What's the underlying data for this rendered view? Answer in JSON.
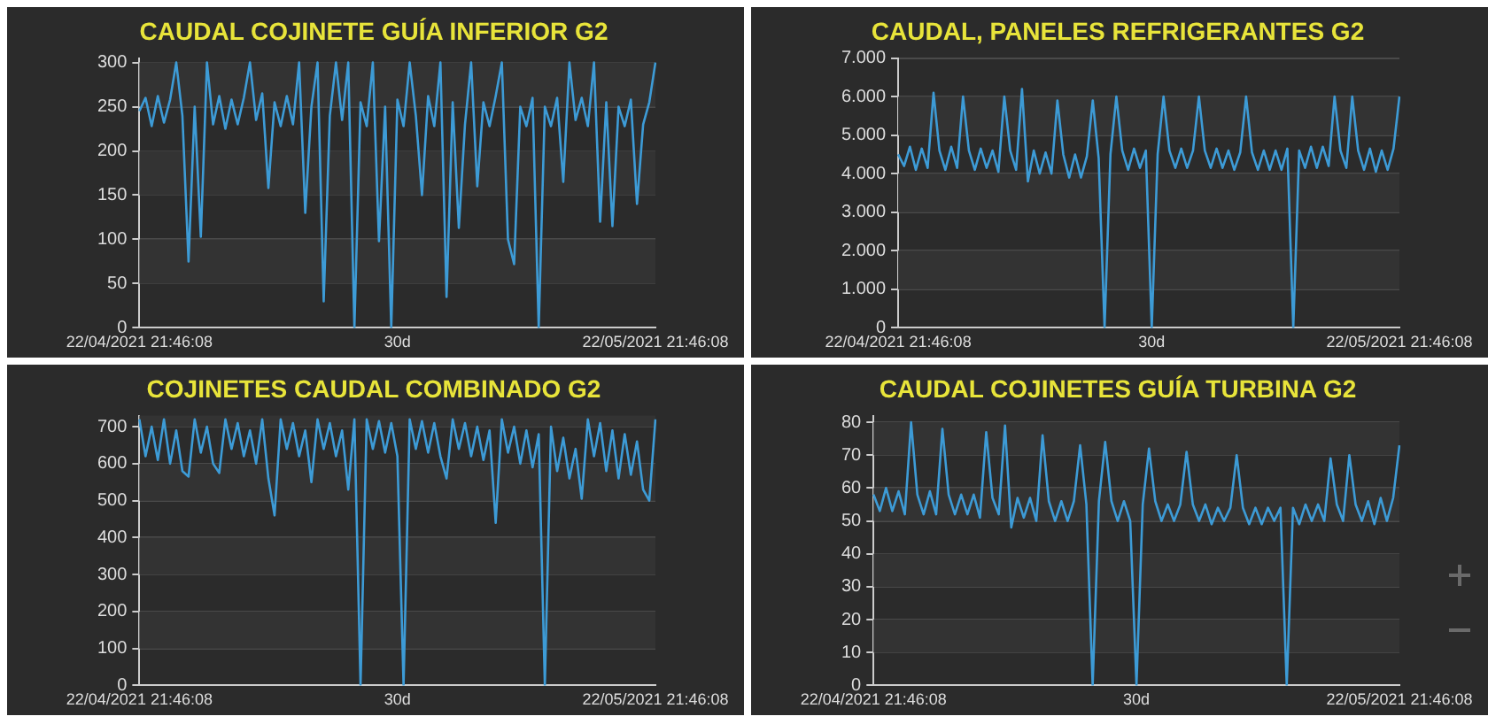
{
  "chart_data": [
    {
      "type": "line",
      "title": "CAUDAL COJINETE GUÍA INFERIOR G2",
      "color": "#3d9bd6",
      "grid": "y",
      "legend": false,
      "marker": "none",
      "categories": [
        "22/04/2021 21:46:08",
        null,
        null,
        null,
        null,
        null,
        null,
        null,
        null,
        null,
        null,
        null,
        null,
        null,
        null,
        null,
        null,
        null,
        null,
        null,
        null,
        null,
        null,
        null,
        null,
        null,
        null,
        null,
        null,
        null,
        null,
        null,
        null,
        null,
        null,
        null,
        null,
        null,
        null,
        null,
        null,
        null,
        "30d",
        null,
        null,
        null,
        null,
        null,
        null,
        null,
        null,
        null,
        null,
        null,
        null,
        null,
        null,
        null,
        null,
        null,
        null,
        null,
        null,
        null,
        null,
        null,
        null,
        null,
        null,
        null,
        null,
        null,
        null,
        null,
        null,
        null,
        null,
        null,
        null,
        null,
        null,
        null,
        null,
        null,
        "22/05/2021 21:46:08"
      ],
      "ylim": [
        0,
        305
      ],
      "yticks": [
        0,
        50,
        100,
        150,
        200,
        250,
        300
      ],
      "values": [
        245,
        260,
        228,
        262,
        232,
        258,
        300,
        240,
        75,
        250,
        103,
        300,
        230,
        262,
        225,
        258,
        230,
        260,
        300,
        235,
        265,
        158,
        255,
        228,
        262,
        230,
        300,
        130,
        250,
        300,
        30,
        240,
        300,
        235,
        300,
        0,
        255,
        228,
        300,
        98,
        250,
        0,
        258,
        228,
        300,
        240,
        150,
        262,
        228,
        300,
        35,
        255,
        113,
        230,
        300,
        160,
        255,
        228,
        262,
        300,
        100,
        72,
        250,
        228,
        260,
        0,
        250,
        228,
        260,
        165,
        300,
        235,
        260,
        228,
        300,
        120,
        255,
        115,
        250,
        228,
        258,
        140,
        230,
        255,
        300
      ]
    },
    {
      "type": "line",
      "title": "CAUDAL, PANELES REFRIGERANTES G2",
      "color": "#3d9bd6",
      "grid": "y",
      "legend": false,
      "marker": "none",
      "categories": [
        "22/04/2021 21:46:08",
        null,
        null,
        null,
        null,
        null,
        null,
        null,
        null,
        null,
        null,
        null,
        null,
        null,
        null,
        null,
        null,
        null,
        null,
        null,
        null,
        null,
        null,
        null,
        null,
        null,
        null,
        null,
        null,
        null,
        null,
        null,
        null,
        null,
        null,
        null,
        null,
        null,
        null,
        null,
        null,
        null,
        null,
        "30d",
        null,
        null,
        null,
        null,
        null,
        null,
        null,
        null,
        null,
        null,
        null,
        null,
        null,
        null,
        null,
        null,
        null,
        null,
        null,
        null,
        null,
        null,
        null,
        null,
        null,
        null,
        null,
        null,
        null,
        null,
        null,
        null,
        null,
        null,
        null,
        null,
        null,
        null,
        null,
        null,
        null,
        "22/05/2021 21:46:08"
      ],
      "ylim": [
        0,
        7000
      ],
      "yticks": [
        0,
        {
          "value": 1000,
          "label": "1.000"
        },
        {
          "value": 2000,
          "label": "2.000"
        },
        {
          "value": 3000,
          "label": "3.000"
        },
        {
          "value": 4000,
          "label": "4.000"
        },
        {
          "value": 5000,
          "label": "5.000"
        },
        {
          "value": 6000,
          "label": "6.000"
        },
        {
          "value": 7000,
          "label": "7.000"
        }
      ],
      "values": [
        4500,
        4200,
        4700,
        4100,
        4650,
        4150,
        6100,
        4600,
        4100,
        4700,
        4150,
        6000,
        4600,
        4100,
        4650,
        4150,
        4600,
        4050,
        6000,
        4600,
        4100,
        6200,
        3800,
        4600,
        4000,
        4550,
        4000,
        5900,
        4500,
        3900,
        4500,
        3900,
        4450,
        5900,
        4400,
        0,
        4500,
        6000,
        4600,
        4100,
        4650,
        4150,
        4600,
        0,
        4500,
        6000,
        4600,
        4150,
        4650,
        4150,
        4600,
        6000,
        4600,
        4150,
        4650,
        4150,
        4600,
        4100,
        4550,
        6000,
        4550,
        4100,
        4600,
        4100,
        4600,
        4100,
        4650,
        0,
        4600,
        4150,
        4700,
        4150,
        4700,
        4200,
        6000,
        4600,
        4150,
        6000,
        4600,
        4100,
        4650,
        4050,
        4600,
        4100,
        4650,
        6000
      ]
    },
    {
      "type": "line",
      "title": "COJINETES CAUDAL COMBINADO G2",
      "color": "#3d9bd6",
      "grid": "y",
      "legend": false,
      "marker": "none",
      "categories": [
        "22/04/2021 21:46:08",
        null,
        null,
        null,
        null,
        null,
        null,
        null,
        null,
        null,
        null,
        null,
        null,
        null,
        null,
        null,
        null,
        null,
        null,
        null,
        null,
        null,
        null,
        null,
        null,
        null,
        null,
        null,
        null,
        null,
        null,
        null,
        null,
        null,
        null,
        null,
        null,
        null,
        null,
        null,
        null,
        null,
        "30d",
        null,
        null,
        null,
        null,
        null,
        null,
        null,
        null,
        null,
        null,
        null,
        null,
        null,
        null,
        null,
        null,
        null,
        null,
        null,
        null,
        null,
        null,
        null,
        null,
        null,
        null,
        null,
        null,
        null,
        null,
        null,
        null,
        null,
        null,
        null,
        null,
        null,
        null,
        null,
        null,
        null,
        "22/05/2021 21:46:08"
      ],
      "ylim": [
        0,
        730
      ],
      "yticks": [
        0,
        100,
        200,
        300,
        400,
        500,
        600,
        700
      ],
      "values": [
        720,
        620,
        700,
        610,
        720,
        600,
        690,
        580,
        565,
        720,
        630,
        700,
        600,
        575,
        720,
        640,
        710,
        620,
        690,
        600,
        720,
        560,
        460,
        720,
        640,
        710,
        620,
        690,
        550,
        720,
        640,
        710,
        620,
        690,
        530,
        720,
        0,
        720,
        640,
        715,
        630,
        710,
        620,
        0,
        720,
        640,
        715,
        630,
        710,
        620,
        560,
        720,
        640,
        710,
        620,
        700,
        610,
        690,
        440,
        720,
        630,
        700,
        600,
        690,
        590,
        680,
        0,
        700,
        580,
        670,
        560,
        640,
        505,
        720,
        620,
        710,
        580,
        690,
        560,
        680,
        570,
        660,
        530,
        500,
        720
      ]
    },
    {
      "type": "line",
      "title": "CAUDAL COJINETES GUÍA TURBINA G2",
      "color": "#3d9bd6",
      "grid": "y",
      "legend": false,
      "marker": "none",
      "categories": [
        "22/04/2021 21:46:08",
        null,
        null,
        null,
        null,
        null,
        null,
        null,
        null,
        null,
        null,
        null,
        null,
        null,
        null,
        null,
        null,
        null,
        null,
        null,
        null,
        null,
        null,
        null,
        null,
        null,
        null,
        null,
        null,
        null,
        null,
        null,
        null,
        null,
        null,
        null,
        null,
        null,
        null,
        null,
        null,
        null,
        "30d",
        null,
        null,
        null,
        null,
        null,
        null,
        null,
        null,
        null,
        null,
        null,
        null,
        null,
        null,
        null,
        null,
        null,
        null,
        null,
        null,
        null,
        null,
        null,
        null,
        null,
        null,
        null,
        null,
        null,
        null,
        null,
        null,
        null,
        null,
        null,
        null,
        null,
        null,
        null,
        null,
        null,
        "22/05/2021 21:46:08"
      ],
      "ylim": [
        0,
        82
      ],
      "yticks": [
        0,
        10,
        20,
        30,
        40,
        50,
        60,
        70,
        80
      ],
      "values": [
        58,
        53,
        60,
        53,
        59,
        52,
        80,
        58,
        52,
        59,
        52,
        78,
        58,
        52,
        58,
        52,
        58,
        51,
        77,
        57,
        52,
        79,
        48,
        57,
        51,
        57,
        50,
        76,
        56,
        50,
        56,
        50,
        56,
        73,
        55,
        0,
        56,
        74,
        56,
        50,
        56,
        50,
        0,
        55,
        72,
        56,
        50,
        55,
        50,
        55,
        71,
        55,
        50,
        55,
        49,
        54,
        50,
        54,
        70,
        54,
        49,
        54,
        49,
        54,
        50,
        54,
        0,
        54,
        49,
        55,
        50,
        55,
        50,
        69,
        55,
        50,
        70,
        55,
        50,
        56,
        49,
        57,
        50,
        57,
        73
      ]
    }
  ]
}
